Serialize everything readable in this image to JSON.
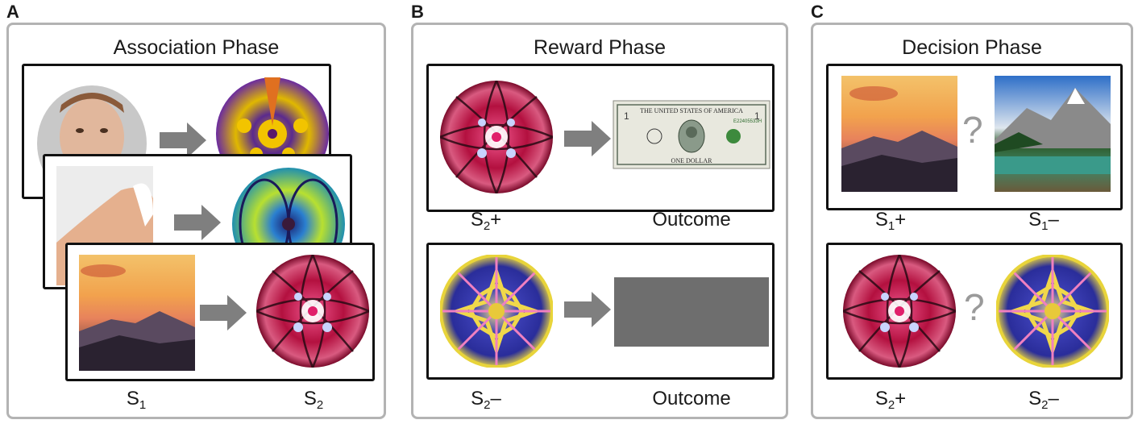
{
  "panels": [
    {
      "letter": "A",
      "title": "Association Phase"
    },
    {
      "letter": "B",
      "title": "Reward Phase"
    },
    {
      "letter": "C",
      "title": "Decision Phase"
    }
  ],
  "labels": {
    "a_s": "S",
    "a_s_sub": "1",
    "a_s2": "S",
    "a_s2_sub": "2",
    "b1_left": "S",
    "b1_left_sub": "2",
    "b1_left_sign": "+",
    "b1_right": "Outcome",
    "b2_left": "S",
    "b2_left_sub": "2",
    "b2_left_sign": "–",
    "b2_right": "Outcome",
    "c1_left": "S",
    "c1_left_sub": "1",
    "c1_left_sign": "+",
    "c1_right": "S",
    "c1_right_sub": "1",
    "c1_right_sign": "–",
    "c2_left": "S",
    "c2_left_sub": "2",
    "c2_left_sign": "+",
    "c2_right": "S",
    "c2_right_sub": "2",
    "c2_right_sign": "–",
    "question": "?"
  },
  "dollar": {
    "top": "THE UNITED STATES OF AMERICA",
    "bottom": "ONE DOLLAR",
    "serial": "E22405533H"
  },
  "colors": {
    "arrow": "#7f7f7f",
    "panel_border": "#b3b3b3",
    "gray_outcome": "#6e6e6e",
    "question": "#9a9a9a"
  }
}
